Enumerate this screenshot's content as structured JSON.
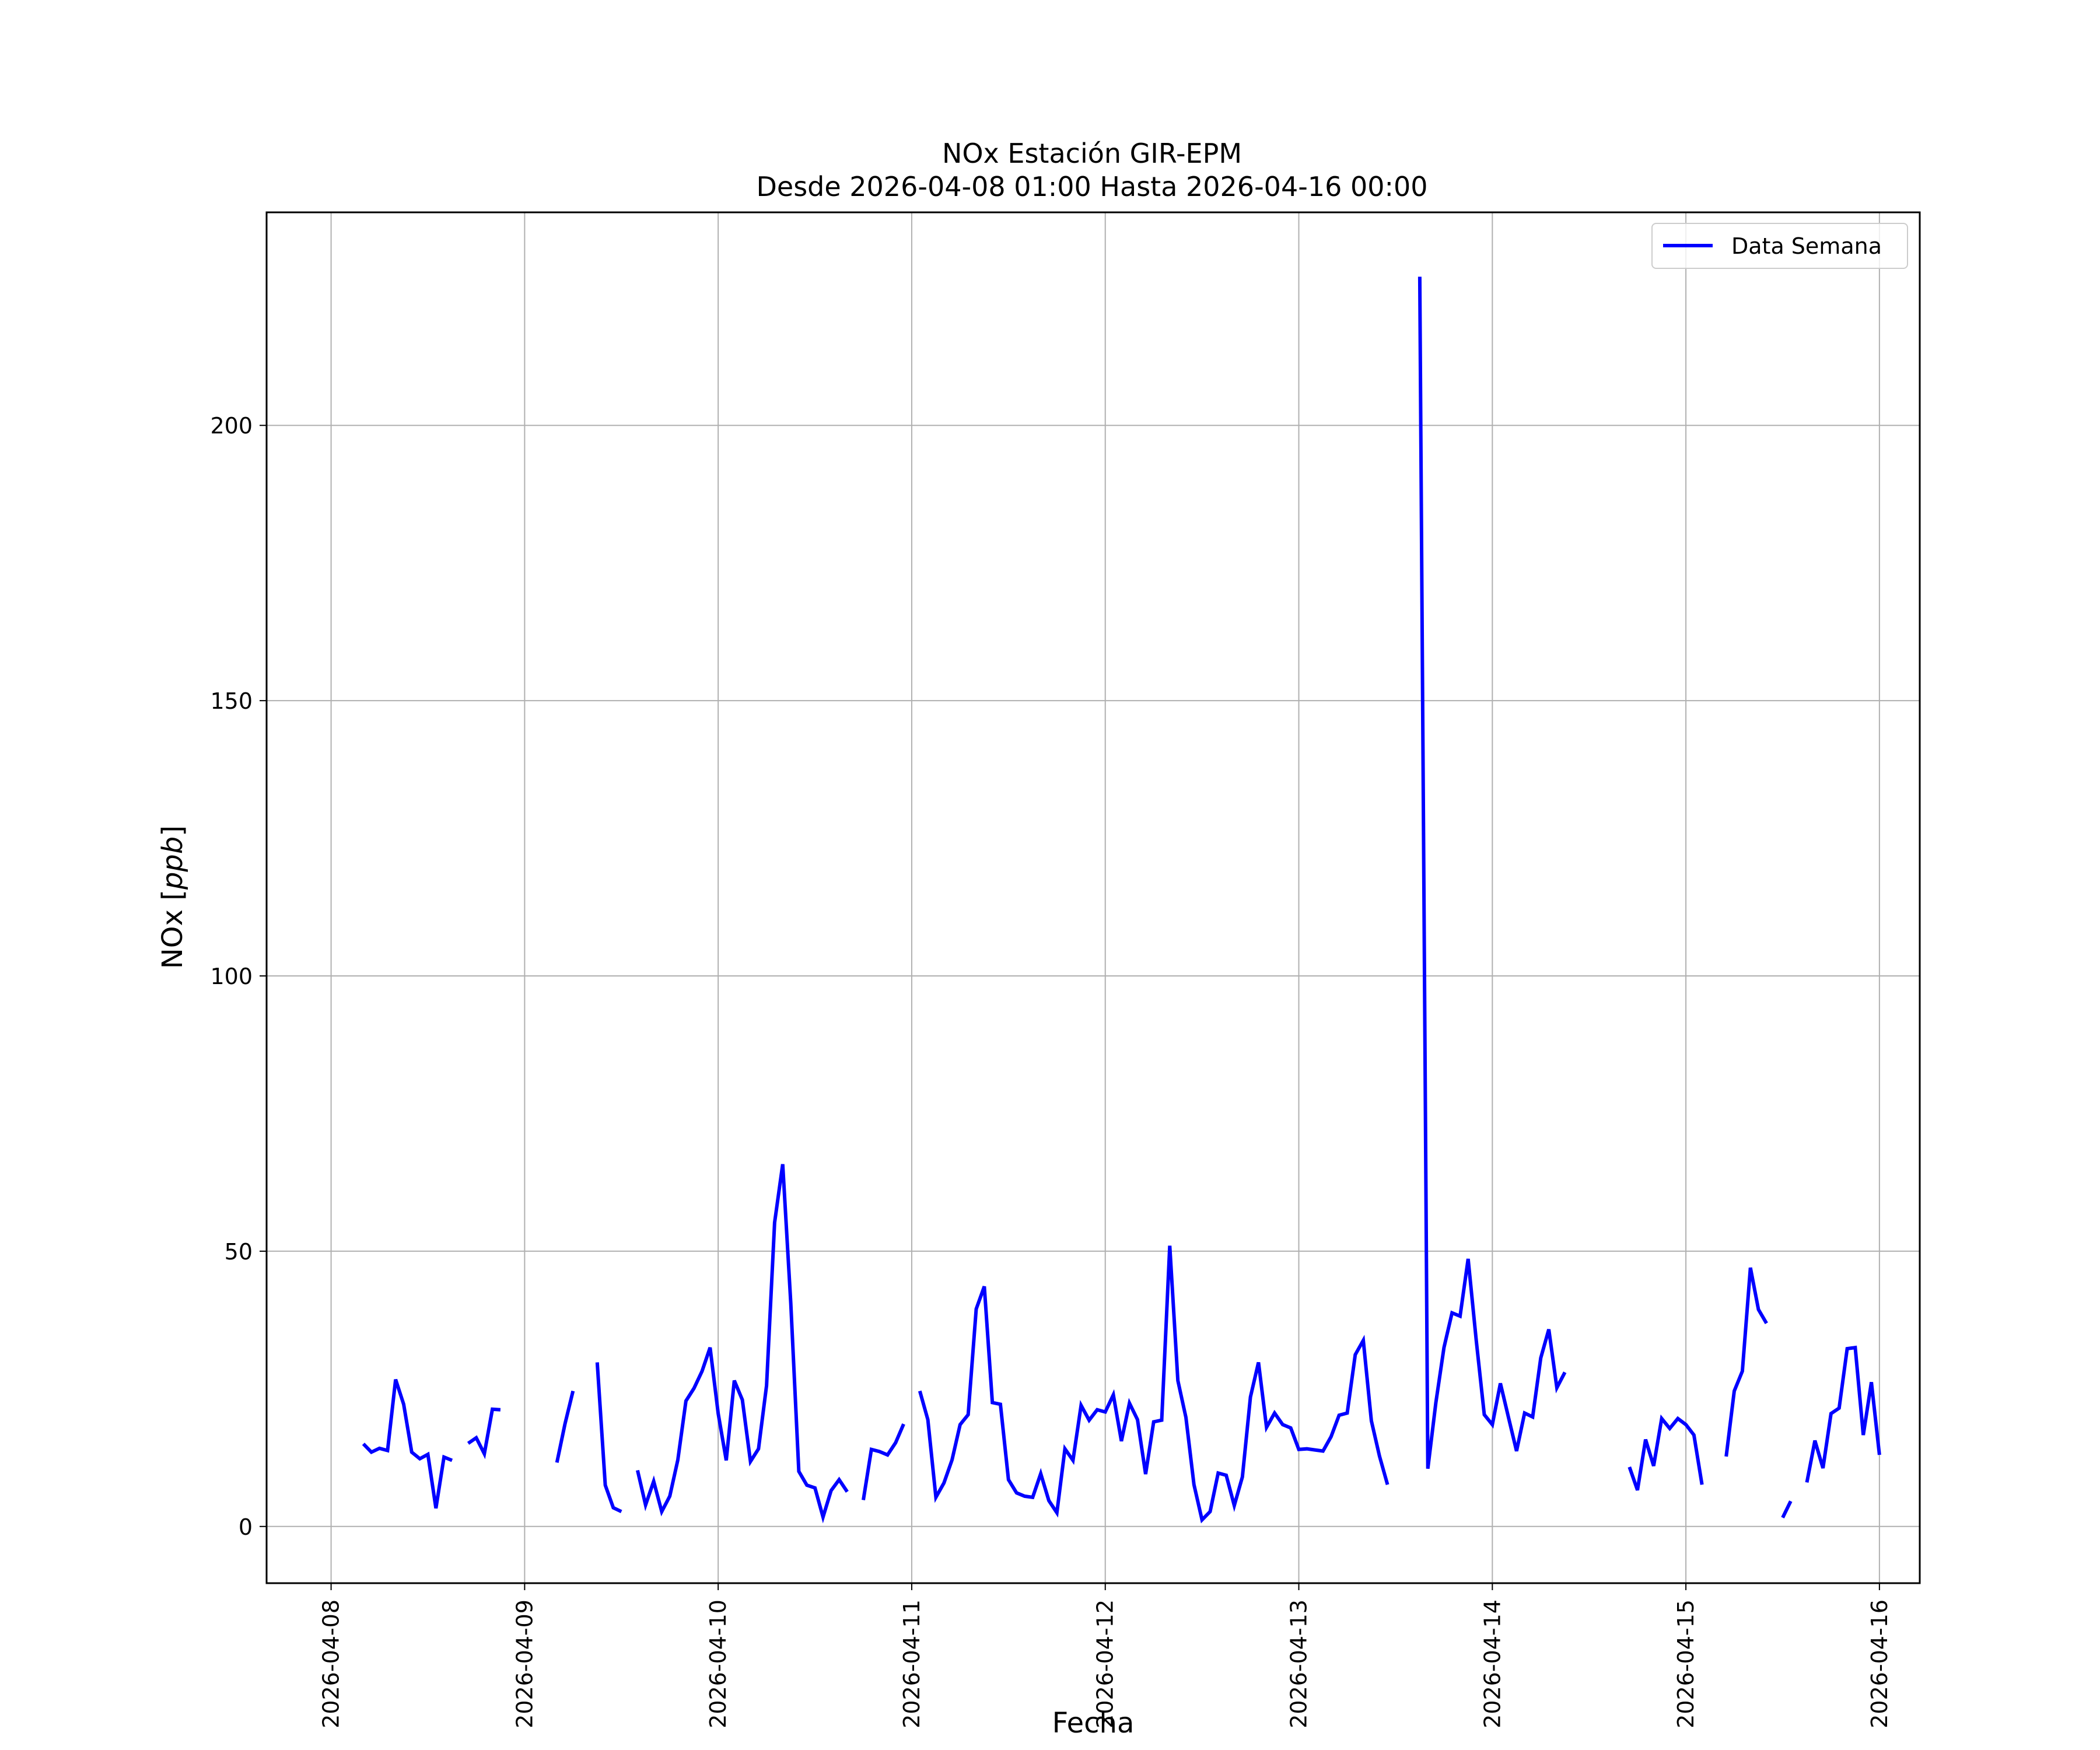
{
  "chart_data": {
    "type": "line",
    "title": "NOx Estación GIR-EPM",
    "subtitle": "Desde 2026-04-08 01:00 Hasta 2026-04-16 00:00",
    "xlabel": "Fecha",
    "ylabel_text": "NOx [",
    "ylabel_unit": "ppb",
    "ylabel_close": "]",
    "x_tick_labels": [
      "2026-04-08",
      "2026-04-09",
      "2026-04-10",
      "2026-04-11",
      "2026-04-12",
      "2026-04-13",
      "2026-04-14",
      "2026-04-15",
      "2026-04-16"
    ],
    "y_tick_labels": [
      "0",
      "50",
      "100",
      "150",
      "200"
    ],
    "y_ticks": [
      0,
      50,
      100,
      150,
      200
    ],
    "xlim": [
      "2026-04-07 16:00",
      "2026-04-16 05:00"
    ],
    "ylim": [
      -10.3,
      238.7
    ],
    "grid": true,
    "legend_position": "top-right",
    "series": [
      {
        "name": "Data Semana",
        "color": "#0000ff",
        "segments": [
          [
            [
              "2026-04-08 04:00",
              15.0
            ],
            [
              "2026-04-08 05:00",
              13.5
            ],
            [
              "2026-04-08 06:00",
              14.2
            ],
            [
              "2026-04-08 07:00",
              13.8
            ],
            [
              "2026-04-08 08:00",
              26.7
            ],
            [
              "2026-04-08 09:00",
              22.2
            ],
            [
              "2026-04-08 10:00",
              13.5
            ],
            [
              "2026-04-08 11:00",
              12.3
            ],
            [
              "2026-04-08 12:00",
              13.1
            ],
            [
              "2026-04-08 13:00",
              3.3
            ],
            [
              "2026-04-08 14:00",
              12.6
            ],
            [
              "2026-04-08 15:00",
              12.0
            ]
          ],
          [
            [
              "2026-04-08 17:00",
              15.1
            ],
            [
              "2026-04-08 18:00",
              16.1
            ],
            [
              "2026-04-08 19:00",
              13.2
            ],
            [
              "2026-04-08 20:00",
              21.3
            ],
            [
              "2026-04-08 21:00",
              21.2
            ]
          ],
          [
            [
              "2026-04-09 04:00",
              11.6
            ],
            [
              "2026-04-09 05:00",
              18.6
            ],
            [
              "2026-04-09 06:00",
              24.6
            ]
          ],
          [
            [
              "2026-04-09 09:00",
              29.8
            ],
            [
              "2026-04-09 10:00",
              7.5
            ],
            [
              "2026-04-09 11:00",
              3.4
            ],
            [
              "2026-04-09 12:00",
              2.7
            ]
          ],
          [
            [
              "2026-04-09 14:00",
              10.2
            ],
            [
              "2026-04-09 15:00",
              3.9
            ],
            [
              "2026-04-09 16:00",
              8.2
            ],
            [
              "2026-04-09 17:00",
              2.7
            ],
            [
              "2026-04-09 18:00",
              5.5
            ],
            [
              "2026-04-09 19:00",
              12.1
            ],
            [
              "2026-04-09 20:00",
              22.8
            ],
            [
              "2026-04-09 21:00",
              25.1
            ],
            [
              "2026-04-09 22:00",
              28.2
            ],
            [
              "2026-04-09 23:00",
              32.5
            ],
            [
              "2026-04-10 00:00",
              20.5
            ],
            [
              "2026-04-10 01:00",
              12.0
            ],
            [
              "2026-04-10 02:00",
              26.5
            ],
            [
              "2026-04-10 03:00",
              23.0
            ],
            [
              "2026-04-10 04:00",
              11.8
            ],
            [
              "2026-04-10 05:00",
              14.1
            ],
            [
              "2026-04-10 06:00",
              25.6
            ],
            [
              "2026-04-10 07:00",
              55.2
            ],
            [
              "2026-04-10 08:00",
              65.8
            ],
            [
              "2026-04-10 09:00",
              40.6
            ],
            [
              "2026-04-10 10:00",
              10.0
            ],
            [
              "2026-04-10 11:00",
              7.5
            ],
            [
              "2026-04-10 12:00",
              7.0
            ],
            [
              "2026-04-10 13:00",
              1.7
            ],
            [
              "2026-04-10 14:00",
              6.5
            ],
            [
              "2026-04-10 15:00",
              8.5
            ],
            [
              "2026-04-10 16:00",
              6.3
            ]
          ],
          [
            [
              "2026-04-10 18:00",
              4.8
            ],
            [
              "2026-04-10 19:00",
              14.0
            ],
            [
              "2026-04-10 20:00",
              13.6
            ],
            [
              "2026-04-10 21:00",
              13.0
            ],
            [
              "2026-04-10 22:00",
              15.2
            ],
            [
              "2026-04-10 23:00",
              18.6
            ]
          ],
          [
            [
              "2026-04-11 01:00",
              24.6
            ],
            [
              "2026-04-11 02:00",
              19.4
            ],
            [
              "2026-04-11 03:00",
              5.3
            ],
            [
              "2026-04-11 04:00",
              7.9
            ],
            [
              "2026-04-11 05:00",
              12.1
            ],
            [
              "2026-04-11 06:00",
              18.5
            ],
            [
              "2026-04-11 07:00",
              20.3
            ],
            [
              "2026-04-11 08:00",
              39.5
            ],
            [
              "2026-04-11 09:00",
              43.6
            ],
            [
              "2026-04-11 10:00",
              22.5
            ],
            [
              "2026-04-11 11:00",
              22.2
            ],
            [
              "2026-04-11 12:00",
              8.5
            ],
            [
              "2026-04-11 13:00",
              6.1
            ],
            [
              "2026-04-11 14:00",
              5.5
            ],
            [
              "2026-04-11 15:00",
              5.3
            ],
            [
              "2026-04-11 16:00",
              9.6
            ],
            [
              "2026-04-11 17:00",
              4.7
            ],
            [
              "2026-04-11 18:00",
              2.5
            ],
            [
              "2026-04-11 19:00",
              14.1
            ],
            [
              "2026-04-11 20:00",
              12.0
            ],
            [
              "2026-04-11 21:00",
              22.0
            ],
            [
              "2026-04-11 22:00",
              19.3
            ],
            [
              "2026-04-11 23:00",
              21.2
            ],
            [
              "2026-04-12 00:00",
              20.8
            ],
            [
              "2026-04-12 01:00",
              23.9
            ],
            [
              "2026-04-12 02:00",
              15.5
            ],
            [
              "2026-04-12 03:00",
              22.4
            ],
            [
              "2026-04-12 04:00",
              19.4
            ],
            [
              "2026-04-12 05:00",
              9.5
            ],
            [
              "2026-04-12 06:00",
              19.0
            ],
            [
              "2026-04-12 07:00",
              19.3
            ],
            [
              "2026-04-12 08:00",
              51.0
            ],
            [
              "2026-04-12 09:00",
              26.5
            ],
            [
              "2026-04-12 10:00",
              19.8
            ],
            [
              "2026-04-12 11:00",
              7.6
            ],
            [
              "2026-04-12 12:00",
              1.2
            ],
            [
              "2026-04-12 13:00",
              2.7
            ],
            [
              "2026-04-12 14:00",
              9.7
            ],
            [
              "2026-04-12 15:00",
              9.3
            ],
            [
              "2026-04-12 16:00",
              3.8
            ],
            [
              "2026-04-12 17:00",
              9.0
            ],
            [
              "2026-04-12 18:00",
              23.5
            ],
            [
              "2026-04-12 19:00",
              29.8
            ],
            [
              "2026-04-12 20:00",
              18.0
            ],
            [
              "2026-04-12 21:00",
              20.6
            ],
            [
              "2026-04-12 22:00",
              18.5
            ],
            [
              "2026-04-12 23:00",
              17.9
            ],
            [
              "2026-04-13 00:00",
              14.0
            ],
            [
              "2026-04-13 01:00",
              14.1
            ],
            [
              "2026-04-13 02:00",
              13.9
            ],
            [
              "2026-04-13 03:00",
              13.7
            ],
            [
              "2026-04-13 04:00",
              16.3
            ],
            [
              "2026-04-13 05:00",
              20.2
            ],
            [
              "2026-04-13 06:00",
              20.6
            ],
            [
              "2026-04-13 07:00",
              31.2
            ],
            [
              "2026-04-13 08:00",
              33.8
            ],
            [
              "2026-04-13 09:00",
              19.2
            ],
            [
              "2026-04-13 10:00",
              12.8
            ],
            [
              "2026-04-13 11:00",
              7.6
            ]
          ],
          [
            [
              "2026-04-13 15:00",
              227.0
            ],
            [
              "2026-04-13 16:00",
              10.5
            ],
            [
              "2026-04-13 17:00",
              22.5
            ],
            [
              "2026-04-13 18:00",
              32.5
            ],
            [
              "2026-04-13 19:00",
              38.8
            ],
            [
              "2026-04-13 20:00",
              38.2
            ],
            [
              "2026-04-13 21:00",
              48.6
            ],
            [
              "2026-04-13 22:00",
              33.8
            ],
            [
              "2026-04-13 23:00",
              20.3
            ],
            [
              "2026-04-14 00:00",
              18.5
            ],
            [
              "2026-04-14 01:00",
              26.0
            ],
            [
              "2026-04-14 02:00",
              19.8
            ],
            [
              "2026-04-14 03:00",
              13.7
            ],
            [
              "2026-04-14 04:00",
              20.6
            ],
            [
              "2026-04-14 05:00",
              19.9
            ],
            [
              "2026-04-14 06:00",
              30.6
            ],
            [
              "2026-04-14 07:00",
              35.8
            ],
            [
              "2026-04-14 08:00",
              25.2
            ],
            [
              "2026-04-14 09:00",
              28.0
            ]
          ],
          [
            [
              "2026-04-14 17:00",
              10.8
            ],
            [
              "2026-04-14 18:00",
              6.6
            ],
            [
              "2026-04-14 19:00",
              15.8
            ],
            [
              "2026-04-14 20:00",
              11.0
            ],
            [
              "2026-04-14 21:00",
              19.6
            ],
            [
              "2026-04-14 22:00",
              17.8
            ],
            [
              "2026-04-14 23:00",
              19.6
            ],
            [
              "2026-04-15 00:00",
              18.5
            ],
            [
              "2026-04-15 01:00",
              16.6
            ],
            [
              "2026-04-15 02:00",
              7.6
            ]
          ],
          [
            [
              "2026-04-15 05:00",
              12.7
            ],
            [
              "2026-04-15 06:00",
              24.6
            ],
            [
              "2026-04-15 07:00",
              28.2
            ],
            [
              "2026-04-15 08:00",
              47.0
            ],
            [
              "2026-04-15 09:00",
              39.4
            ],
            [
              "2026-04-15 10:00",
              36.9
            ]
          ],
          [
            [
              "2026-04-15 12:00",
              1.6
            ],
            [
              "2026-04-15 13:00",
              4.6
            ]
          ],
          [
            [
              "2026-04-15 15:00",
              8.0
            ],
            [
              "2026-04-15 16:00",
              15.6
            ],
            [
              "2026-04-15 17:00",
              10.6
            ],
            [
              "2026-04-15 18:00",
              20.5
            ],
            [
              "2026-04-15 19:00",
              21.5
            ],
            [
              "2026-04-15 20:00",
              32.3
            ],
            [
              "2026-04-15 21:00",
              32.5
            ],
            [
              "2026-04-15 22:00",
              16.6
            ],
            [
              "2026-04-15 23:00",
              26.2
            ],
            [
              "2026-04-16 00:00",
              13.0
            ]
          ]
        ]
      }
    ]
  }
}
